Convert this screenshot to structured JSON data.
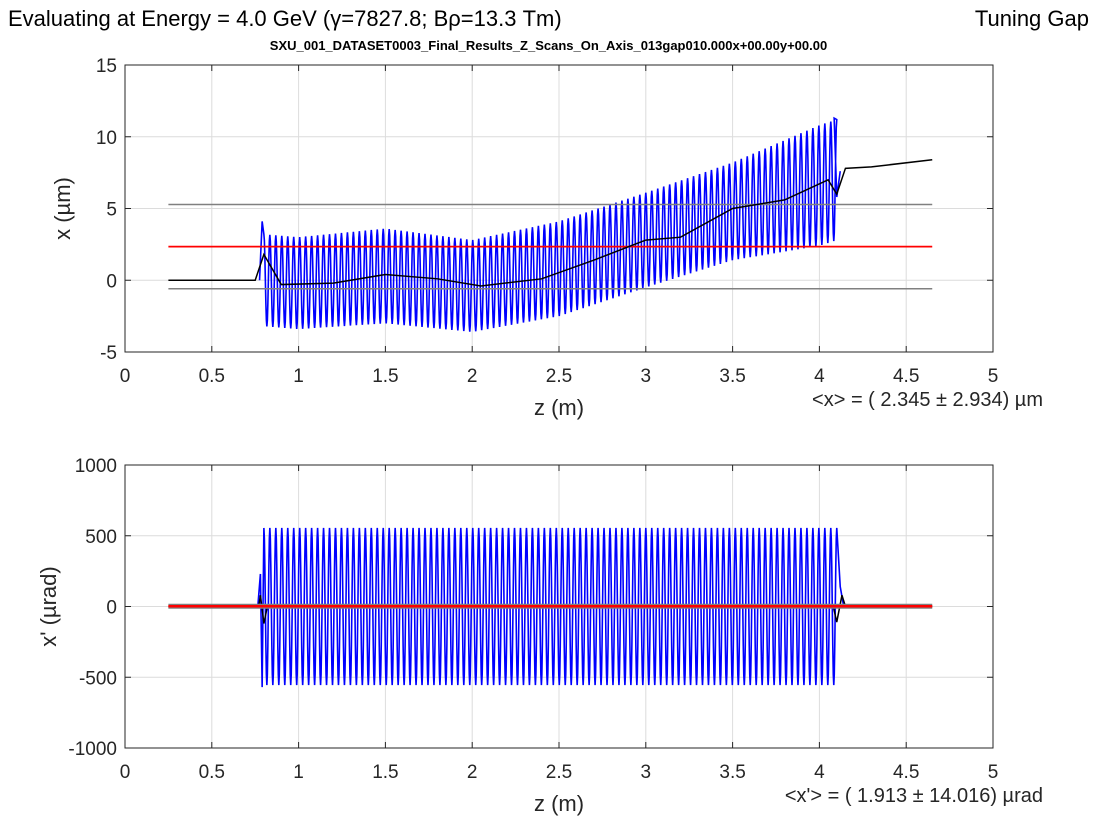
{
  "header": {
    "energy_label": "Evaluating at Energy =  4.0 GeV (γ=7827.8; Bρ=13.3 Tm)",
    "right_label": "Tuning Gap",
    "dataset_title": "SXU_001_DATASET0003_Final_Results_Z_Scans_On_Axis_013gap010.000x+00.00y+00.00"
  },
  "colors": {
    "signal": "#0000ff",
    "mean_line": "#ff0000",
    "bounds_line": "#808080",
    "trajectory": "#000000",
    "grid": "#dcdcdc",
    "axis": "#262626"
  },
  "chart_data": [
    {
      "type": "line",
      "xlabel": "z (m)",
      "ylabel": "x (µm)",
      "xlim": [
        0,
        5
      ],
      "ylim": [
        -5,
        15
      ],
      "xticks": [
        "0",
        "0.5",
        "1",
        "1.5",
        "2",
        "2.5",
        "3",
        "3.5",
        "4",
        "4.5",
        "5"
      ],
      "yticks": [
        "-5",
        "0",
        "5",
        "10",
        "15"
      ],
      "grid": true,
      "stat_text": "<x> = (  2.345 ± 2.934) µm",
      "mean": 2.345,
      "std": 2.934,
      "upper_bound": 5.279,
      "lower_bound": -0.589,
      "line_range": [
        0.25,
        4.65
      ],
      "oscillation": {
        "z_start": 0.8,
        "z_end": 4.1,
        "periods": 96,
        "envelope_z": [
          0.8,
          1.0,
          1.5,
          2.0,
          2.5,
          3.0,
          3.5,
          4.0,
          4.1
        ],
        "center": [
          0.0,
          -0.2,
          0.3,
          -0.4,
          0.8,
          2.8,
          4.8,
          6.6,
          7.0
        ],
        "amplitude": [
          3.2,
          3.2,
          3.3,
          3.2,
          3.3,
          3.3,
          3.4,
          4.2,
          4.2
        ]
      },
      "trajectory": {
        "z": [
          0.25,
          0.75,
          0.8,
          0.9,
          1.2,
          1.5,
          1.8,
          2.05,
          2.4,
          2.7,
          3.0,
          3.2,
          3.5,
          3.8,
          4.05,
          4.1,
          4.15,
          4.3,
          4.65
        ],
        "x": [
          0.0,
          0.0,
          1.8,
          -0.3,
          -0.2,
          0.4,
          0.1,
          -0.4,
          0.1,
          1.4,
          2.8,
          3.0,
          5.0,
          5.6,
          7.0,
          6.0,
          7.8,
          7.9,
          8.4
        ]
      }
    },
    {
      "type": "line",
      "xlabel": "z (m)",
      "ylabel": "x' (µrad)",
      "xlim": [
        0,
        5
      ],
      "ylim": [
        -1000,
        1000
      ],
      "xticks": [
        "0",
        "0.5",
        "1",
        "1.5",
        "2",
        "2.5",
        "3",
        "3.5",
        "4",
        "4.5",
        "5"
      ],
      "yticks": [
        "-1000",
        "-500",
        "0",
        "500",
        "1000"
      ],
      "grid": true,
      "stat_text": "<x'> = (  1.913 ± 14.016) µrad",
      "mean": 1.913,
      "std": 14.016,
      "line_range": [
        0.25,
        4.65
      ],
      "oscillation": {
        "z_start": 0.8,
        "z_end": 4.1,
        "periods": 96,
        "amplitude": 555,
        "lead_in_peak": 230,
        "lead_in_trough": -570
      }
    }
  ]
}
